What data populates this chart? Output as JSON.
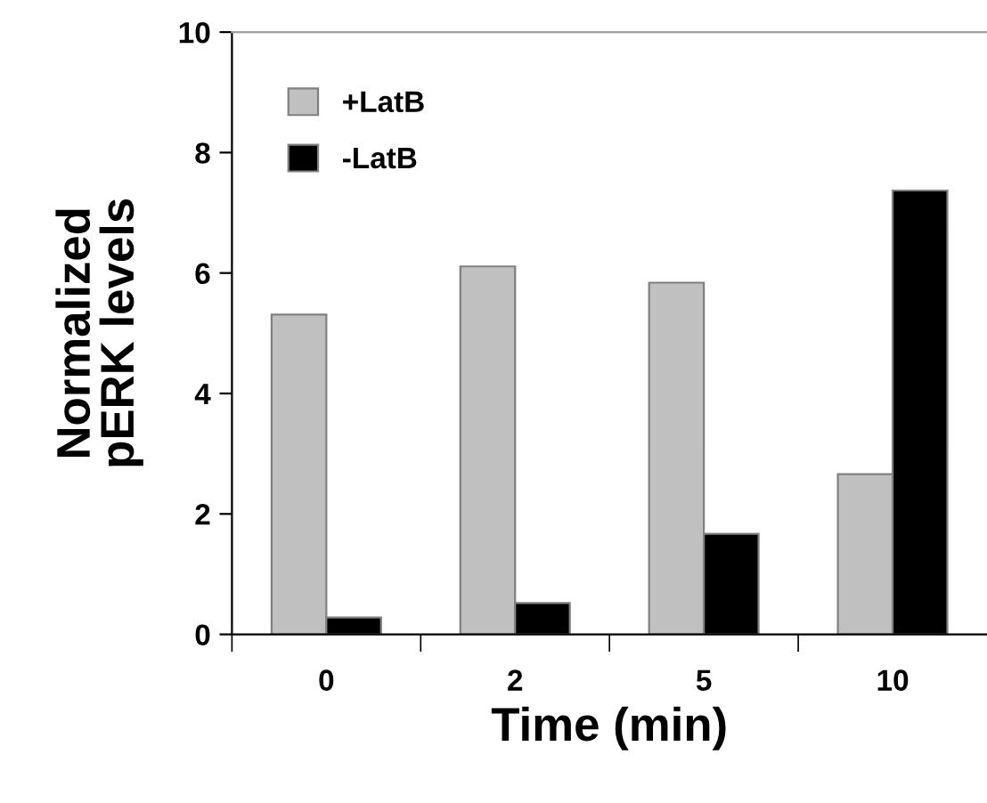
{
  "chart_data": {
    "type": "bar",
    "xlabel": "Time (min)",
    "ylabel": "Normalized\npERK levels",
    "categories": [
      "0",
      "2",
      "5",
      "10"
    ],
    "series": [
      {
        "name": "+LatB",
        "color": "#c0c0c0",
        "values": [
          5.31,
          6.11,
          5.84,
          2.66
        ]
      },
      {
        "name": "-LatB",
        "color": "#000000",
        "values": [
          0.28,
          0.52,
          1.67,
          7.37
        ]
      }
    ],
    "ylim": [
      0,
      10
    ],
    "yticks": [
      0,
      2,
      4,
      6,
      8,
      10
    ],
    "grid": false,
    "legend": "top left"
  }
}
